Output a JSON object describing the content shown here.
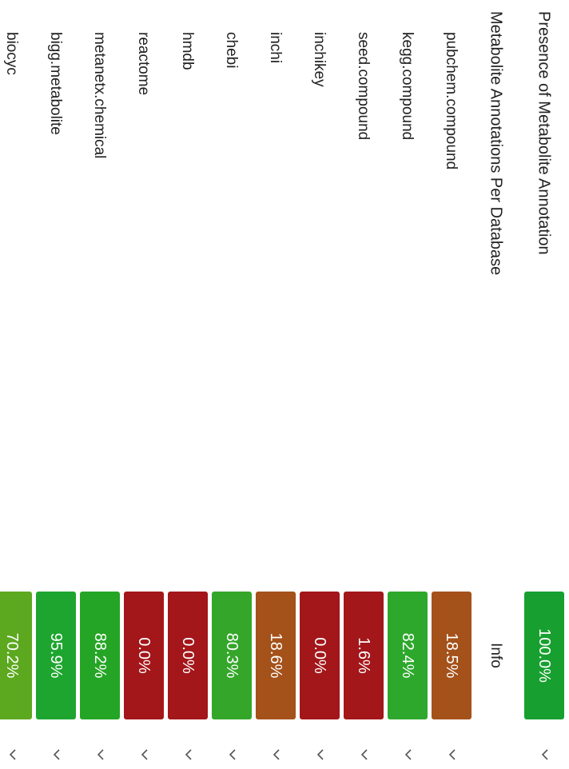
{
  "header": {
    "title": "Presence of Metabolite Annotation",
    "score": "100.0%",
    "color": "#17a02f"
  },
  "section": {
    "title": "Metabolite Annotations Per Database",
    "info": "Info"
  },
  "rows": [
    {
      "label": "pubchem.compound",
      "score": "18.5%",
      "color": "#a4511a"
    },
    {
      "label": "kegg.compound",
      "score": "82.4%",
      "color": "#2ea82c"
    },
    {
      "label": "seed.compound",
      "score": "1.6%",
      "color": "#a3161a"
    },
    {
      "label": "inchikey",
      "score": "0.0%",
      "color": "#a3161a"
    },
    {
      "label": "inchi",
      "score": "18.6%",
      "color": "#a4511a"
    },
    {
      "label": "chebi",
      "score": "80.3%",
      "color": "#34a62a"
    },
    {
      "label": "hmdb",
      "score": "0.0%",
      "color": "#a3161a"
    },
    {
      "label": "reactome",
      "score": "0.0%",
      "color": "#a3161a"
    },
    {
      "label": "metanetx.chemical",
      "score": "88.2%",
      "color": "#25a525"
    },
    {
      "label": "bigg.metabolite",
      "score": "95.9%",
      "color": "#1ea52f"
    },
    {
      "label": "biocyc",
      "score": "70.2%",
      "color": "#5ca81f"
    }
  ]
}
